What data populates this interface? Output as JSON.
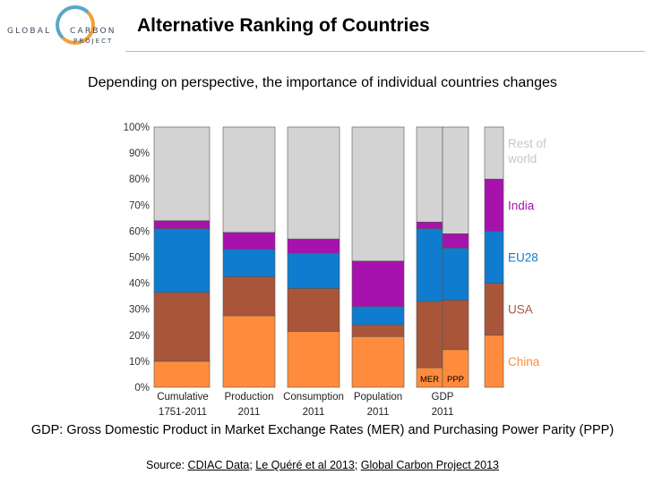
{
  "logo": {
    "line1": "GLOBAL",
    "line2": "CARBON",
    "line3": "PROJECT"
  },
  "title": "Alternative Ranking of Countries",
  "subtitle": "Depending on perspective, the importance of individual countries changes",
  "caption": "GDP: Gross Domestic Product in Market Exchange Rates (MER) and Purchasing Power Parity (PPP)",
  "source": {
    "prefix": "Source: ",
    "link1": "CDIAC Data",
    "sep1": "; ",
    "link2": "Le Quéré et al 2013",
    "sep2": "; ",
    "link3": "Global Carbon Project 2013"
  },
  "colors": {
    "China": "#ff8c3c",
    "USA": "#a9553a",
    "EU28": "#0f7ccf",
    "India": "#a712ad",
    "Rest of world": "#d3d3d3"
  },
  "chart_data": {
    "type": "bar",
    "stacked": true,
    "ylim": [
      0,
      100
    ],
    "yticks": [
      "0%",
      "10%",
      "20%",
      "30%",
      "40%",
      "50%",
      "60%",
      "70%",
      "80%",
      "90%",
      "100%"
    ],
    "categories": [
      "Cumulative 1751-2011",
      "Production 2011",
      "Consumption 2011",
      "Population 2011",
      "GDP MER 2011",
      "GDP PPP 2011"
    ],
    "group_labels": [
      {
        "line1": "Cumulative",
        "line2": "1751-2011"
      },
      {
        "line1": "Production",
        "line2": "2011"
      },
      {
        "line1": "Consumption",
        "line2": "2011"
      },
      {
        "line1": "Population",
        "line2": "2011"
      },
      {
        "line1": "GDP",
        "line2": "2011"
      }
    ],
    "bar_inner_labels": [
      "",
      "",
      "",
      "",
      "MER",
      "PPP"
    ],
    "series": [
      {
        "name": "China",
        "values": [
          10,
          27.5,
          21.5,
          19.5,
          7.5,
          14.5
        ]
      },
      {
        "name": "USA",
        "values": [
          26.5,
          15,
          16.5,
          4.5,
          25.5,
          19
        ]
      },
      {
        "name": "EU28",
        "values": [
          24.5,
          10.5,
          13.5,
          7,
          28,
          20
        ]
      },
      {
        "name": "India",
        "values": [
          3,
          6.5,
          5.5,
          17.5,
          2.5,
          5.5
        ]
      },
      {
        "name": "Rest of world",
        "values": [
          36,
          40.5,
          43,
          51.5,
          36.5,
          41
        ]
      }
    ],
    "legend": {
      "placement": "right",
      "entries": [
        {
          "series": "Rest of world",
          "line1": "Rest of",
          "line2": "world",
          "value": 20
        },
        {
          "series": "India",
          "line1": "India",
          "line2": "",
          "value": 20
        },
        {
          "series": "EU28",
          "line1": "EU28",
          "line2": "",
          "value": 20
        },
        {
          "series": "USA",
          "line1": "USA",
          "line2": "",
          "value": 20
        },
        {
          "series": "China",
          "line1": "China",
          "line2": "",
          "value": 20
        }
      ]
    },
    "legend_label_colors": {
      "Rest of world": "#c8c8c8",
      "India": "#a712ad",
      "EU28": "#0f7ccf",
      "USA": "#a9553a",
      "China": "#ff8c3c"
    }
  }
}
